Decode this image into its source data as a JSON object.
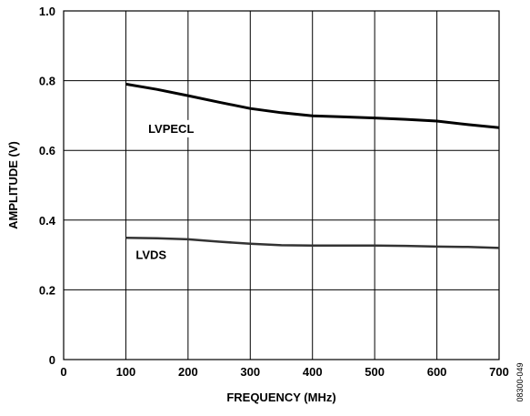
{
  "chart_data": {
    "type": "line",
    "xlabel": "FREQUENCY (MHz)",
    "ylabel": "AMPLITUDE (V)",
    "xlim": [
      0,
      700
    ],
    "ylim": [
      0,
      1.0
    ],
    "x_ticks": [
      "0",
      "100",
      "200",
      "300",
      "400",
      "500",
      "600",
      "700"
    ],
    "y_ticks": [
      "0",
      "0.2",
      "0.4",
      "0.6",
      "0.8",
      "1.0"
    ],
    "x_tick_values": [
      0,
      100,
      200,
      300,
      400,
      500,
      600,
      700
    ],
    "y_tick_values": [
      0,
      0.2,
      0.4,
      0.6,
      0.8,
      1.0
    ],
    "grid": true,
    "legend": "none",
    "series": [
      {
        "name": "LVPECL",
        "color": "#000000",
        "x": [
          100,
          150,
          200,
          250,
          300,
          350,
          400,
          450,
          500,
          550,
          600,
          650,
          700
        ],
        "y": [
          0.79,
          0.775,
          0.757,
          0.738,
          0.72,
          0.708,
          0.699,
          0.696,
          0.693,
          0.689,
          0.684,
          0.674,
          0.665
        ]
      },
      {
        "name": "LVDS",
        "color": "#333333",
        "x": [
          100,
          150,
          200,
          250,
          300,
          350,
          400,
          450,
          500,
          550,
          600,
          650,
          700
        ],
        "y": [
          0.349,
          0.348,
          0.345,
          0.338,
          0.332,
          0.328,
          0.327,
          0.327,
          0.327,
          0.326,
          0.324,
          0.323,
          0.32
        ]
      }
    ],
    "annotations": [
      "LVPECL",
      "LVDS"
    ],
    "side_label": "08300-049"
  }
}
